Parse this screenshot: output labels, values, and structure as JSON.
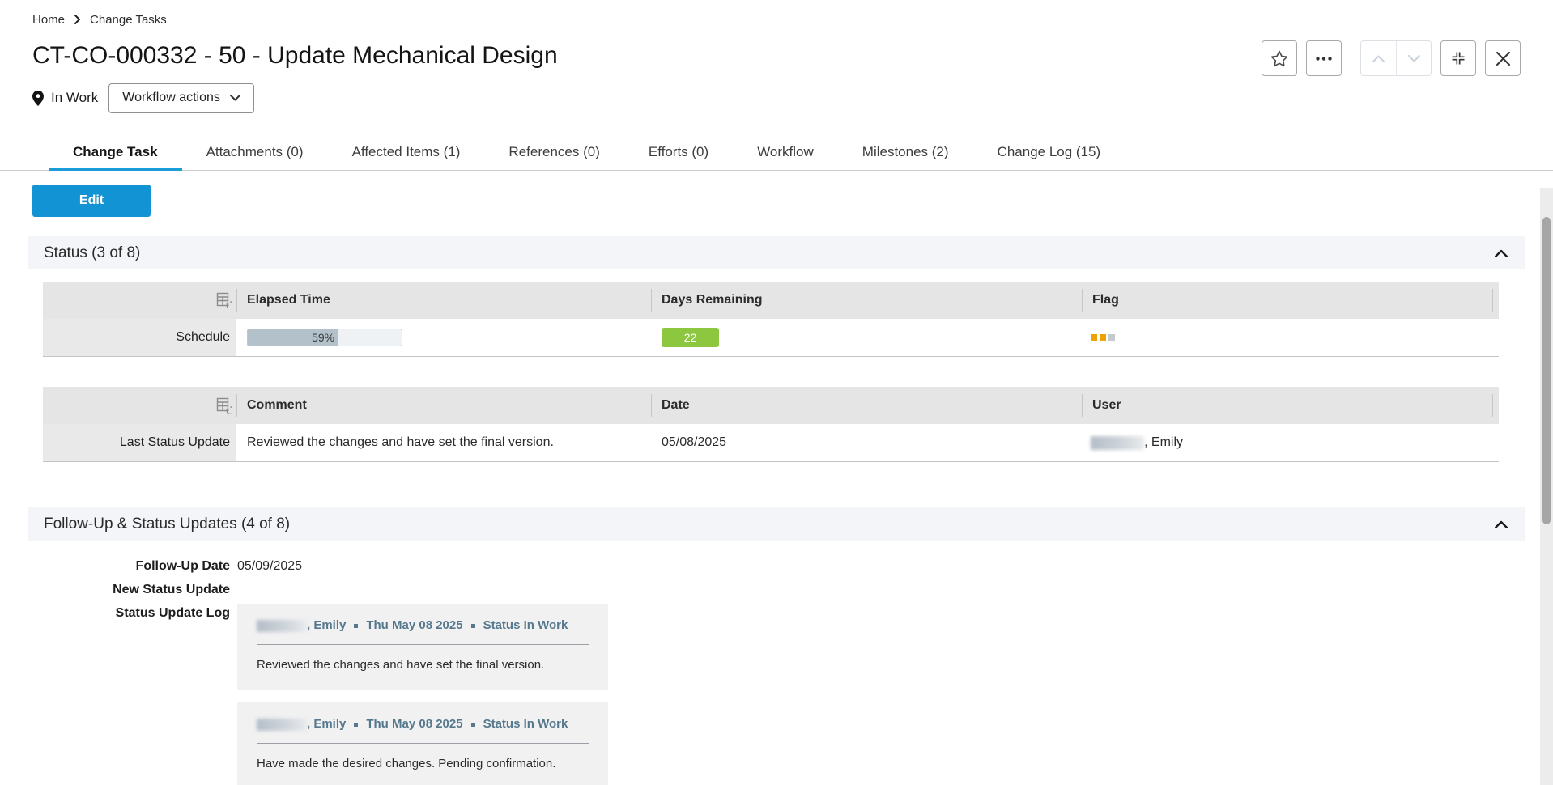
{
  "breadcrumb": {
    "items": [
      "Home",
      "Change Tasks"
    ]
  },
  "header": {
    "title": "CT-CO-000332 - 50 - Update Mechanical Design",
    "status": "In Work",
    "workflow_actions_label": "Workflow actions"
  },
  "tabs": [
    {
      "label": "Change Task",
      "active": true
    },
    {
      "label": "Attachments (0)",
      "active": false
    },
    {
      "label": "Affected Items (1)",
      "active": false
    },
    {
      "label": "References (0)",
      "active": false
    },
    {
      "label": "Efforts (0)",
      "active": false
    },
    {
      "label": "Workflow",
      "active": false
    },
    {
      "label": "Milestones (2)",
      "active": false
    },
    {
      "label": "Change Log (15)",
      "active": false
    }
  ],
  "actions": {
    "edit_label": "Edit"
  },
  "status_section": {
    "title": "Status (3 of 8)",
    "schedule_table": {
      "columns": [
        "Elapsed Time",
        "Days Remaining",
        "Flag"
      ],
      "row_label": "Schedule",
      "elapsed_percent": "59%",
      "days_remaining": "22",
      "flags": [
        "orange",
        "orange",
        "gray"
      ]
    },
    "update_table": {
      "columns": [
        "Comment",
        "Date",
        "User"
      ],
      "row_label": "Last Status Update",
      "comment": "Reviewed the changes and have set the final version.",
      "date": "05/08/2025",
      "user_suffix": ", Emily"
    }
  },
  "followup_section": {
    "title": "Follow-Up & Status Updates (4 of 8)",
    "fields": [
      {
        "label": "Follow-Up Date",
        "value": "05/09/2025"
      },
      {
        "label": "New Status Update",
        "value": ""
      },
      {
        "label": "Status Update Log",
        "value": ""
      }
    ],
    "log_entries": [
      {
        "user_suffix": ", Emily",
        "date": "Thu May 08 2025",
        "status": "Status In Work",
        "text": "Reviewed the changes and have set the final version."
      },
      {
        "user_suffix": ", Emily",
        "date": "Thu May 08 2025",
        "status": "Status In Work",
        "text": "Have made the desired changes. Pending confirmation."
      }
    ]
  },
  "icons": {
    "location": "map-pin",
    "favorite": "star-outline",
    "more": "ellipsis",
    "previous": "chevron-up",
    "next": "chevron-down",
    "compress": "collapse-corners",
    "close": "x",
    "collapse_section": "chevron-up",
    "table_header": "table-history"
  },
  "colors": {
    "accent_blue": "#1293d3",
    "tab_underline": "#1b9cd8",
    "days_green": "#8dc63f",
    "flag_orange": "#f0a202",
    "progress_fill": "#b3c2ca",
    "section_bg": "#f3f5f9",
    "table_header_bg": "#e5e5e5",
    "log_header_text": "#55788d"
  }
}
